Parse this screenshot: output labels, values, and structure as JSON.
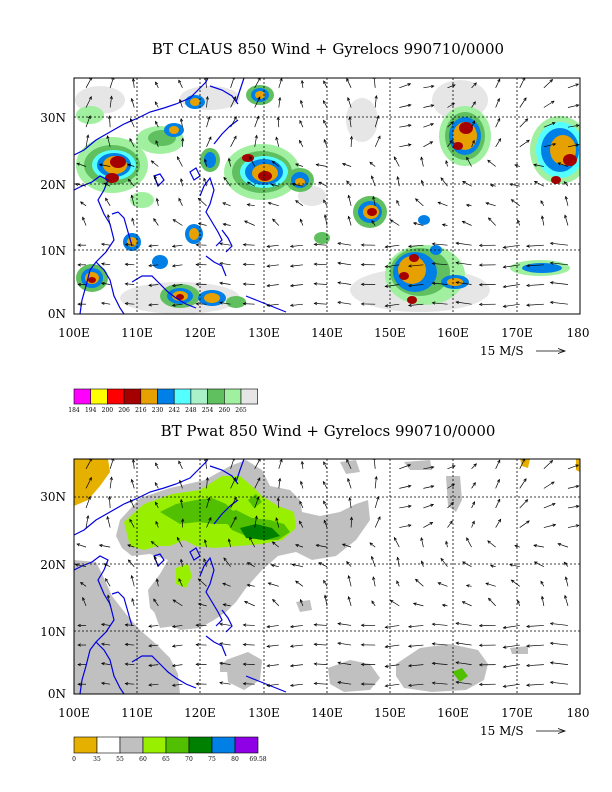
{
  "panels": [
    {
      "id": "claus",
      "title": "BT CLAUS 850 Wind + Gyrelocs 990710/0000",
      "x_ticks": [
        "100E",
        "110E",
        "120E",
        "130E",
        "140E",
        "150E",
        "160E",
        "170E",
        "180"
      ],
      "y_ticks": [
        "0N",
        "10N",
        "20N",
        "30N"
      ],
      "scale_label": "15 M/S",
      "legend": {
        "colors": [
          "#ff00ff",
          "#ffff00",
          "#ff0000",
          "#a50000",
          "#e6a000",
          "#0080e6",
          "#55ffff",
          "#aaf0c8",
          "#60c060",
          "#a0f0a0",
          "#e6e6e6"
        ],
        "labels": [
          "184",
          "194",
          "200",
          "206",
          "216",
          "230",
          "242",
          "248",
          "254",
          "260",
          "265"
        ]
      }
    },
    {
      "id": "pwat",
      "title": "BT Pwat 850 Wind + Gyrelocs 990710/0000",
      "x_ticks": [
        "100E",
        "110E",
        "120E",
        "130E",
        "140E",
        "150E",
        "160E",
        "170E",
        "180"
      ],
      "y_ticks": [
        "0N",
        "10N",
        "20N",
        "30N"
      ],
      "scale_label": "15 M/S",
      "legend": {
        "colors": [
          "#e6b000",
          "#ffffff",
          "#c0c0c0",
          "#98f000",
          "#50c000",
          "#008000",
          "#0080e6",
          "#9000e6"
        ],
        "labels": [
          "0",
          "35",
          "55",
          "60",
          "65",
          "70",
          "75",
          "80",
          "69.58"
        ]
      }
    }
  ]
}
